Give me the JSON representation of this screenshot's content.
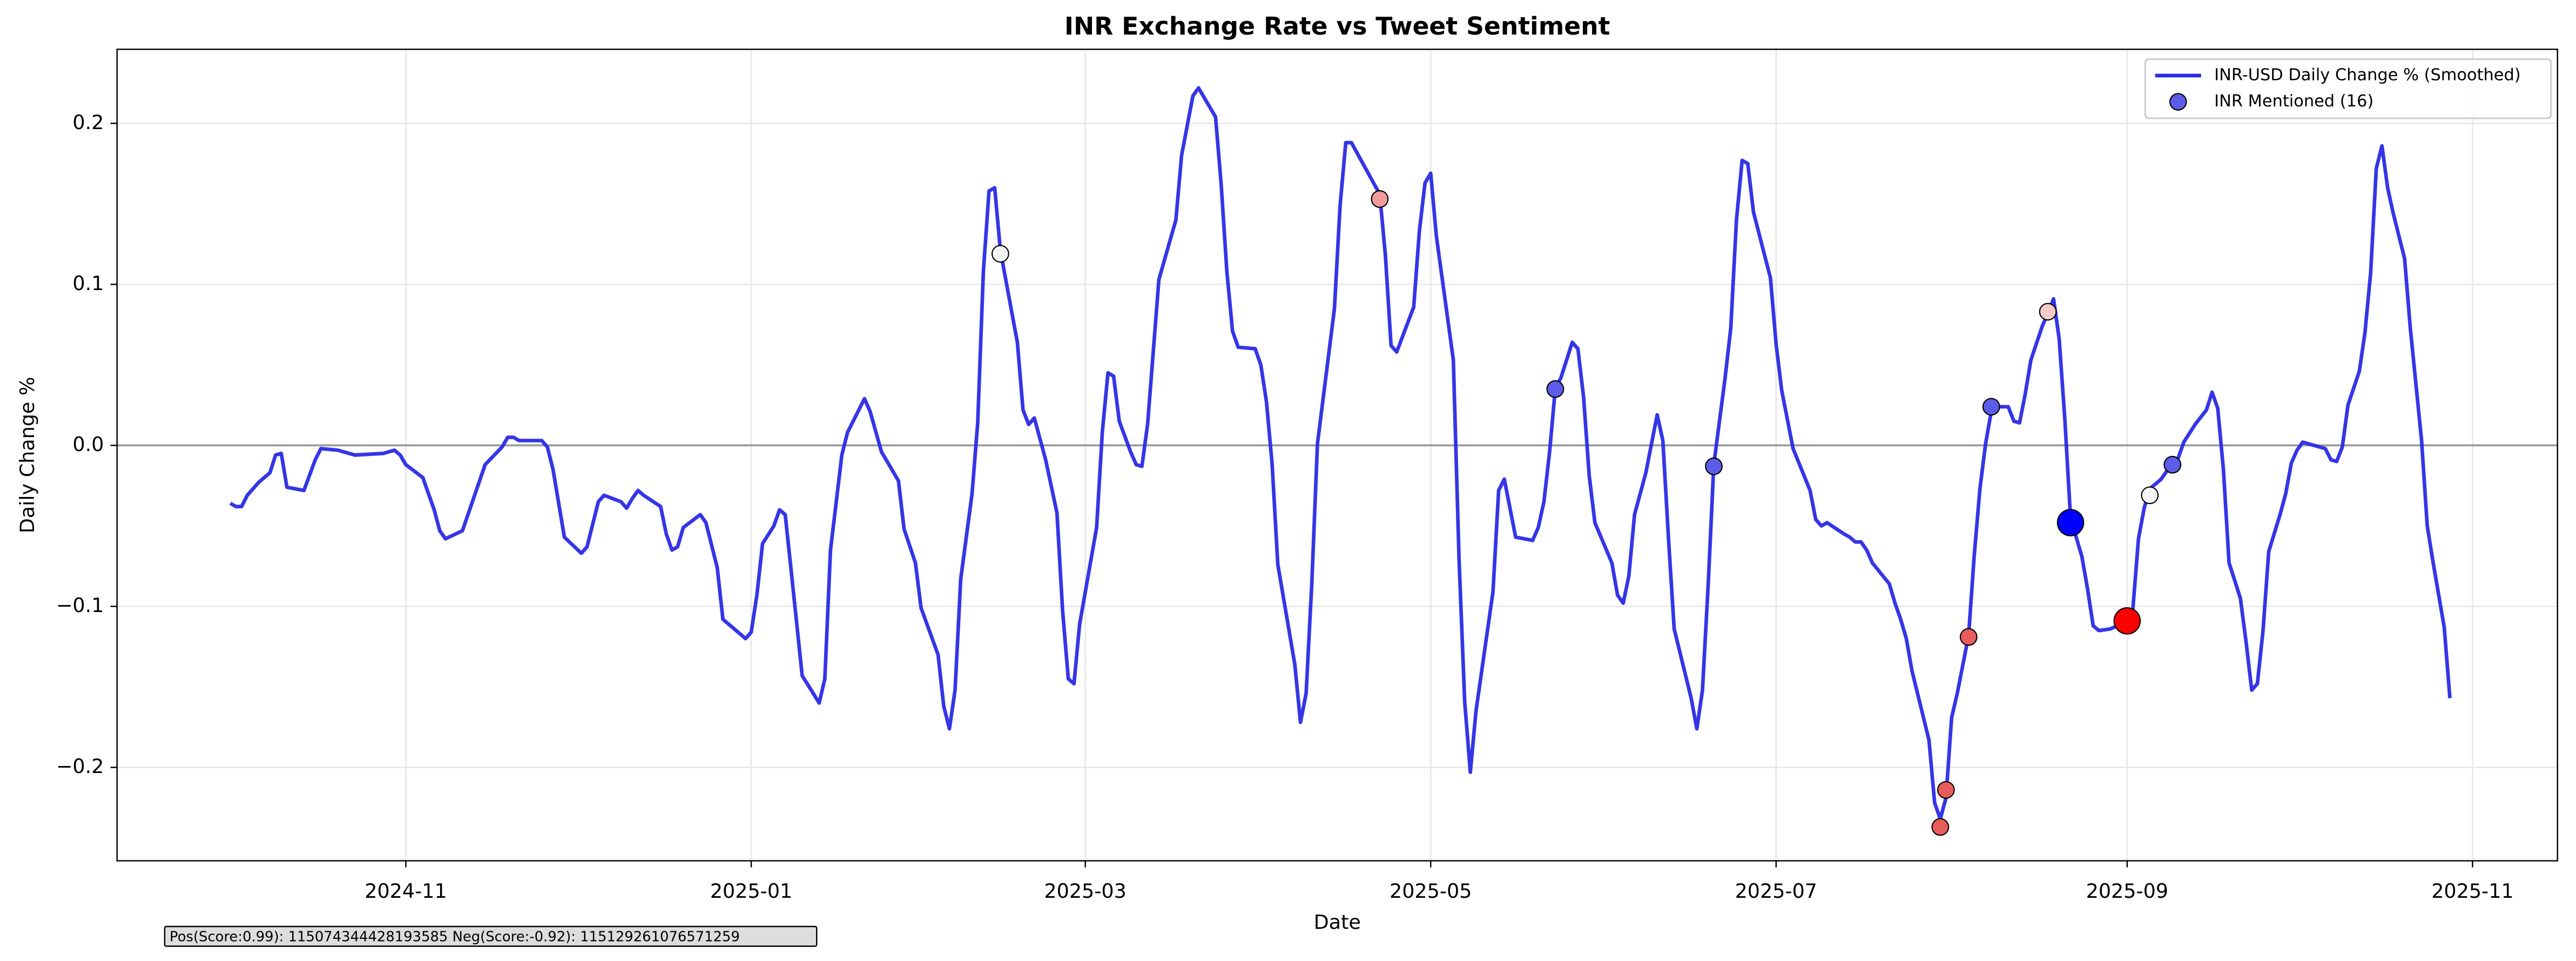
{
  "chart_data": {
    "type": "line",
    "title": "INR Exchange Rate vs Tweet Sentiment",
    "xlabel": "Date",
    "ylabel": "Daily Change %",
    "annotation": "Pos(Score:0.99): 115074344428193585  Neg(Score:-0.92): 115129261076571259",
    "xlim": [
      19977,
      20408
    ],
    "xticks": [
      {
        "value": 20028,
        "label": "2024-11"
      },
      {
        "value": 20089,
        "label": "2025-01"
      },
      {
        "value": 20148,
        "label": "2025-03"
      },
      {
        "value": 20209,
        "label": "2025-05"
      },
      {
        "value": 20270,
        "label": "2025-07"
      },
      {
        "value": 20332,
        "label": "2025-09"
      },
      {
        "value": 20393,
        "label": "2025-11"
      }
    ],
    "ylim": [
      -0.258,
      0.246
    ],
    "yticks": [
      {
        "value": -0.2,
        "label": "−0.2"
      },
      {
        "value": -0.1,
        "label": "−0.1"
      },
      {
        "value": 0,
        "label": "0.0"
      },
      {
        "value": 0.1,
        "label": "0.1"
      },
      {
        "value": 0.2,
        "label": "0.2"
      }
    ],
    "hline": 0,
    "grid": true,
    "legend": "upper right",
    "series": [
      {
        "name": "INR-USD Daily Change % (Smoothed)",
        "color": "#2a2ae6",
        "x": [
          19997,
          19998,
          19999,
          20000,
          20002,
          20004,
          20005,
          20006,
          20007,
          20010,
          20012,
          20013,
          20016,
          20019,
          20024,
          20026,
          20027,
          20028,
          20031,
          20033,
          20034,
          20035,
          20038,
          20042,
          20045,
          20046,
          20047,
          20048,
          20052,
          20053,
          20054,
          20056,
          20059,
          20060,
          20062,
          20063,
          20066,
          20067,
          20068,
          20069,
          20070,
          20073,
          20074,
          20075,
          20076,
          20077,
          20080,
          20081,
          20083,
          20084,
          20087,
          20088,
          20089,
          20090,
          20091,
          20093,
          20094,
          20095,
          20096,
          20098,
          20101,
          20102,
          20103,
          20105,
          20106,
          20109,
          20110,
          20112,
          20115,
          20116,
          20118,
          20119,
          20122,
          20123,
          20124,
          20125,
          20126,
          20128,
          20129,
          20130,
          20131,
          20132,
          20133,
          20136,
          20137,
          20138,
          20139,
          20141,
          20143,
          20144,
          20145,
          20146,
          20147,
          20150,
          20151,
          20152,
          20153,
          20154,
          20156,
          20157,
          20158,
          20159,
          20161,
          20164,
          20165,
          20167,
          20168,
          20171,
          20172,
          20173,
          20174,
          20175,
          20178,
          20179,
          20180,
          20181,
          20182,
          20185,
          20186,
          20187,
          20188,
          20189,
          20192,
          20193,
          20194,
          20195,
          20200,
          20201,
          20202,
          20203,
          20206,
          20207,
          20208,
          20209,
          20210,
          20213,
          20214,
          20215,
          20216,
          20217,
          20220,
          20221,
          20222,
          20224,
          20227,
          20228,
          20229,
          20230,
          20231,
          20232,
          20234,
          20235,
          20236,
          20237,
          20238,
          20241,
          20242,
          20243,
          20244,
          20245,
          20247,
          20248,
          20249,
          20250,
          20251,
          20252,
          20255,
          20256,
          20257,
          20258,
          20259,
          20261,
          20262,
          20263,
          20264,
          20265,
          20266,
          20269,
          20270,
          20271,
          20273,
          20276,
          20277,
          20278,
          20279,
          20282,
          20283,
          20284,
          20285,
          20286,
          20287,
          20290,
          20291,
          20292,
          20293,
          20294,
          20297,
          20298,
          20299,
          20300,
          20301,
          20302,
          20304,
          20305,
          20306,
          20307,
          20308,
          20309,
          20311,
          20312,
          20313,
          20314,
          20315,
          20317,
          20318,
          20319,
          20320,
          20321,
          20322,
          20324,
          20325,
          20326,
          20327,
          20329,
          20331,
          20333,
          20334,
          20335,
          20336,
          20338,
          20339,
          20341,
          20342,
          20344,
          20346,
          20347,
          20348,
          20349,
          20350,
          20352,
          20353,
          20354,
          20355,
          20356,
          20357,
          20359,
          20360,
          20361,
          20362,
          20363,
          20365,
          20367,
          20368,
          20369,
          20370,
          20371,
          20373,
          20374,
          20375,
          20376,
          20377,
          20378,
          20379,
          20381,
          20382,
          20383,
          20384,
          20385,
          20386,
          20388,
          20389
        ],
        "values": [
          -0.036,
          -0.038,
          -0.038,
          -0.031,
          -0.023,
          -0.017,
          -0.006,
          -0.005,
          -0.026,
          -0.028,
          -0.009,
          -0.002,
          -0.003,
          -0.006,
          -0.005,
          -0.003,
          -0.006,
          -0.012,
          -0.02,
          -0.04,
          -0.053,
          -0.058,
          -0.053,
          -0.012,
          -0.001,
          0.005,
          0.005,
          0.003,
          0.003,
          -0.001,
          -0.015,
          -0.057,
          -0.067,
          -0.063,
          -0.035,
          -0.031,
          -0.035,
          -0.039,
          -0.033,
          -0.028,
          -0.031,
          -0.038,
          -0.055,
          -0.065,
          -0.063,
          -0.051,
          -0.043,
          -0.048,
          -0.076,
          -0.108,
          -0.117,
          -0.12,
          -0.116,
          -0.093,
          -0.061,
          -0.05,
          -0.04,
          -0.043,
          -0.076,
          -0.143,
          -0.16,
          -0.145,
          -0.065,
          -0.006,
          0.008,
          0.029,
          0.021,
          -0.004,
          -0.022,
          -0.052,
          -0.073,
          -0.101,
          -0.13,
          -0.162,
          -0.176,
          -0.152,
          -0.083,
          -0.03,
          0.014,
          0.108,
          0.158,
          0.16,
          0.121,
          0.064,
          0.022,
          0.013,
          0.017,
          -0.009,
          -0.042,
          -0.103,
          -0.145,
          -0.148,
          -0.111,
          -0.051,
          0.008,
          0.045,
          0.043,
          0.015,
          -0.004,
          -0.012,
          -0.013,
          0.013,
          0.103,
          0.14,
          0.18,
          0.217,
          0.222,
          0.204,
          0.162,
          0.108,
          0.071,
          0.061,
          0.06,
          0.05,
          0.027,
          -0.012,
          -0.074,
          -0.136,
          -0.172,
          -0.154,
          -0.086,
          0.001,
          0.085,
          0.149,
          0.188,
          0.188,
          0.156,
          0.118,
          0.062,
          0.058,
          0.086,
          0.133,
          0.163,
          0.169,
          0.13,
          0.053,
          -0.07,
          -0.159,
          -0.203,
          -0.165,
          -0.091,
          -0.028,
          -0.021,
          -0.057,
          -0.059,
          -0.051,
          -0.035,
          -0.004,
          0.035,
          0.042,
          0.064,
          0.06,
          0.03,
          -0.019,
          -0.048,
          -0.073,
          -0.093,
          -0.098,
          -0.081,
          -0.043,
          -0.017,
          0.001,
          0.019,
          0.003,
          -0.058,
          -0.114,
          -0.157,
          -0.176,
          -0.152,
          -0.087,
          -0.012,
          0.042,
          0.073,
          0.14,
          0.177,
          0.175,
          0.145,
          0.104,
          0.063,
          0.034,
          -0.002,
          -0.028,
          -0.046,
          -0.05,
          -0.048,
          -0.055,
          -0.057,
          -0.06,
          -0.06,
          -0.065,
          -0.073,
          -0.086,
          -0.098,
          -0.108,
          -0.12,
          -0.14,
          -0.183,
          -0.222,
          -0.232,
          -0.219,
          -0.169,
          -0.154,
          -0.118,
          -0.068,
          -0.027,
          0.001,
          0.021,
          0.024,
          0.024,
          0.015,
          0.014,
          0.032,
          0.053,
          0.074,
          0.082,
          0.091,
          0.066,
          0.016,
          -0.045,
          -0.069,
          -0.089,
          -0.112,
          -0.115,
          -0.114,
          -0.111,
          -0.102,
          -0.058,
          -0.039,
          -0.027,
          -0.021,
          -0.016,
          -0.008,
          0.002,
          0.013,
          0.022,
          0.033,
          0.023,
          -0.015,
          -0.073,
          -0.095,
          -0.122,
          -0.152,
          -0.148,
          -0.115,
          -0.066,
          -0.043,
          -0.03,
          -0.011,
          -0.003,
          0.002,
          0,
          -0.002,
          -0.009,
          -0.01,
          -0.001,
          0.025,
          0.046,
          0.07,
          0.107,
          0.172,
          0.186,
          0.16,
          0.144,
          0.116,
          0.073,
          0.038,
          0.003,
          -0.05,
          -0.072,
          -0.113,
          -0.157
        ]
      },
      {
        "name": "INR Mentioned (16)",
        "type": "scatter",
        "color": "#5c5ce8",
        "x": [
          20133,
          20200,
          20231,
          20259,
          20299,
          20300,
          20304,
          20308,
          20318,
          20322,
          20332,
          20336,
          20340
        ],
        "values": [
          0.119,
          0.153,
          0.035,
          -0.013,
          -0.237,
          -0.214,
          -0.119,
          0.024,
          0.083,
          -0.048,
          -0.109,
          -0.031,
          -0.012
        ],
        "sizes": [
          60,
          60,
          60,
          60,
          60,
          60,
          60,
          60,
          60,
          150,
          150,
          60,
          60
        ],
        "colors": [
          "#f5f5f5",
          "#f19c9c",
          "#5c5ce8",
          "#5c5ce8",
          "#e85c5c",
          "#e85c5c",
          "#e85c5c",
          "#5c5ce8",
          "#f7caca",
          "#0000ff",
          "#ff0000",
          "#f5f5f5",
          "#5c5ce8"
        ]
      }
    ]
  }
}
